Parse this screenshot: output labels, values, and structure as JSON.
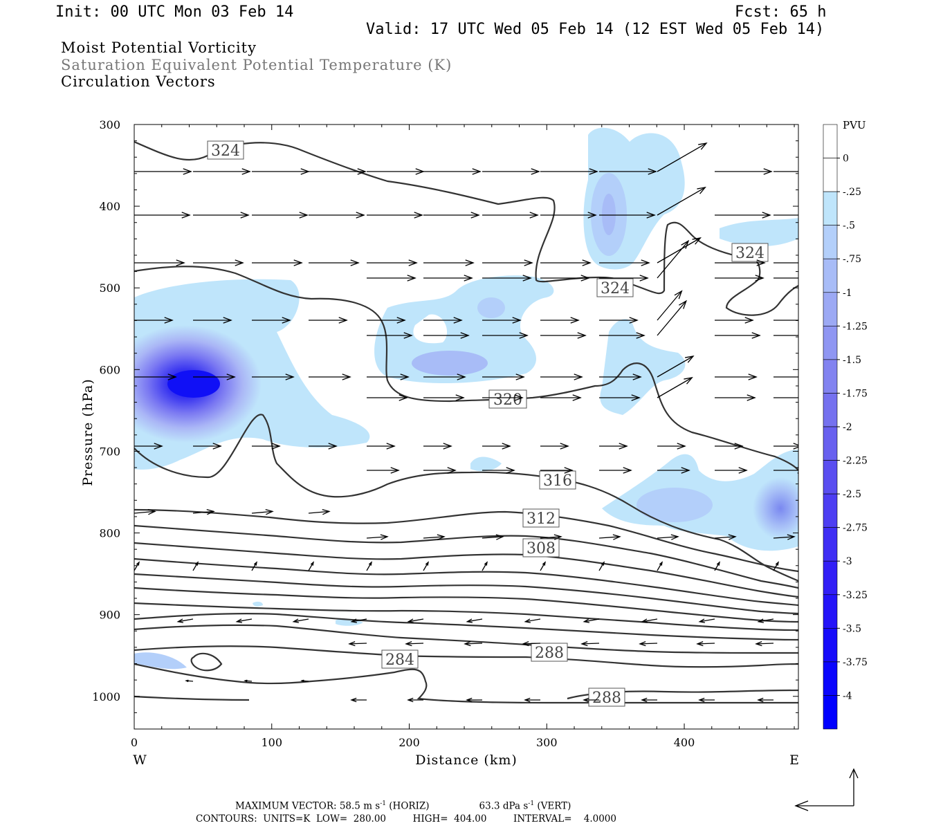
{
  "header": {
    "init": "Init: 00 UTC Mon 03 Feb 14",
    "fcst": "Fcst:   65 h",
    "valid": "Valid: 17 UTC Wed 05 Feb 14 (12 EST Wed 05 Feb 14)"
  },
  "fields": {
    "f1": "Moist Potential Vorticity",
    "f2": "Saturation Equivalent Potential Temperature (K)",
    "f3": "Circulation Vectors"
  },
  "footer": {
    "line1_a": "MAXIMUM VECTOR:  58.5 m s",
    "line1_sup1": "-1",
    "line1_b": " (HORIZ)",
    "line1_c": "63.3 dPa s",
    "line1_sup2": "-1",
    "line1_d": " (VERT)",
    "line2": "CONTOURS:  UNITS=K  LOW=  280.00         HIGH=  404.00         INTERVAL=    4.0000"
  },
  "chart_data": {
    "type": "heatmap",
    "x_axis": {
      "label": "Distance (km)",
      "range": [
        0,
        483
      ],
      "ticks": [
        0,
        100,
        200,
        300,
        400
      ],
      "left_label": "W",
      "right_label": "E"
    },
    "y_axis": {
      "label": "Pressure (hPa)",
      "range": [
        300,
        1040
      ],
      "inverted": true,
      "ticks": [
        300,
        400,
        500,
        600,
        700,
        800,
        900,
        1000
      ]
    },
    "colorbar": {
      "unit": "PVU",
      "labels": [
        "0",
        "-.25",
        "-.5",
        "-.75",
        "-1",
        "-1.25",
        "-1.5",
        "-1.75",
        "-2",
        "-2.25",
        "-2.5",
        "-2.75",
        "-3",
        "-3.25",
        "-3.5",
        "-3.75",
        "-4"
      ],
      "colors": [
        "#ffffff",
        "#ffffff",
        "#bfe5fb",
        "#b3cffa",
        "#a8bcf7",
        "#9ca9f4",
        "#8f96f2",
        "#8283f0",
        "#7571ef",
        "#6860ef",
        "#5a4ef0",
        "#4d3ef2",
        "#3f2ef4",
        "#321ff6",
        "#2414f8",
        "#160bfa",
        "#0a05fd",
        "#0000ff"
      ]
    },
    "pv_regions": [
      {
        "name": "mid-level west max",
        "min_pvu": -3.75,
        "center": [
          45,
          615
        ]
      },
      {
        "name": "upper plume",
        "min_pvu": -1.25,
        "center": [
          345,
          420
        ]
      },
      {
        "name": "mid plume",
        "min_pvu": -1.0,
        "center": [
          225,
          600
        ]
      },
      {
        "name": "lower east max",
        "min_pvu": -1.75,
        "center": [
          475,
          770
        ]
      }
    ],
    "contour_labels": [
      {
        "value": "324",
        "x": 66,
        "p": 332
      },
      {
        "value": "324",
        "x": 350,
        "p": 502
      },
      {
        "value": "324",
        "x": 450,
        "p": 458
      },
      {
        "value": "320",
        "x": 272,
        "p": 635
      },
      {
        "value": "316",
        "x": 309,
        "p": 735
      },
      {
        "value": "312",
        "x": 296,
        "p": 782
      },
      {
        "value": "308",
        "x": 296,
        "p": 818
      },
      {
        "value": "284",
        "x": 193,
        "p": 955
      },
      {
        "value": "288",
        "x": 302,
        "p": 945
      },
      {
        "value": "288",
        "x": 342,
        "p": 1000
      }
    ],
    "contours": {
      "units": "K",
      "low": 280.0,
      "high": 404.0,
      "interval": 4.0
    },
    "max_vector": {
      "horiz": "58.5 m s-1",
      "vert": "63.3 dPa s-1"
    }
  }
}
